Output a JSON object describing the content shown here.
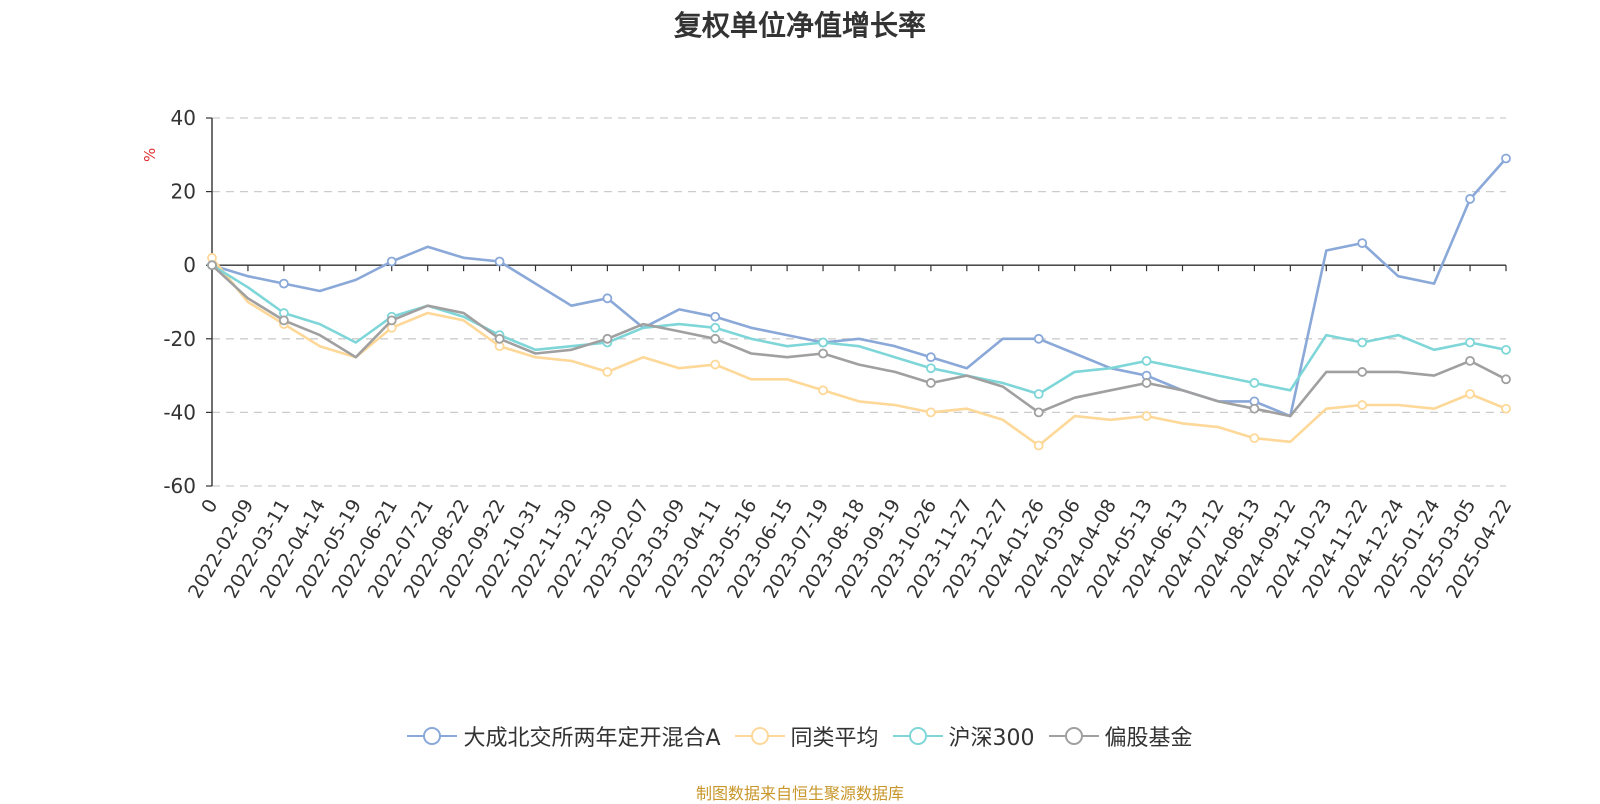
{
  "chart_data": {
    "type": "line",
    "title": "复权单位净值增长率",
    "ylabel": "%",
    "xlabel": "",
    "ylim": [
      -60,
      40
    ],
    "yticks": [
      40,
      20,
      0,
      -20,
      -40,
      -60
    ],
    "grid": true,
    "legend_position": "bottom",
    "x_tick_labels": [
      "0",
      "2022-02-09",
      "2022-03-11",
      "2022-04-14",
      "2022-05-19",
      "2022-06-21",
      "2022-07-21",
      "2022-08-22",
      "2022-09-22",
      "2022-10-31",
      "2022-11-30",
      "2022-12-30",
      "2023-02-07",
      "2023-03-09",
      "2023-04-11",
      "2023-05-16",
      "2023-06-15",
      "2023-07-19",
      "2023-08-18",
      "2023-09-19",
      "2023-10-26",
      "2023-11-27",
      "2023-12-27",
      "2024-01-26",
      "2024-03-06",
      "2024-04-08",
      "2024-05-13",
      "2024-06-13",
      "2024-07-12",
      "2024-08-13",
      "2024-09-12",
      "2024-10-23",
      "2024-11-22",
      "2024-12-24",
      "2025-01-24",
      "2025-03-05",
      "2025-04-22"
    ],
    "series": [
      {
        "name": "大成北交所两年定开混合A",
        "color": "#8aa8d8",
        "values": [
          0,
          -3,
          -5,
          -7,
          -4,
          1,
          5,
          2,
          1,
          -5,
          -11,
          -9,
          -17,
          -12,
          -14,
          -17,
          -19,
          -21,
          -20,
          -22,
          -25,
          -28,
          -20,
          -20,
          -24,
          -28,
          -30,
          -34,
          -37,
          -37,
          -41,
          4,
          6,
          -3,
          -5,
          18,
          29
        ]
      },
      {
        "name": "同类平均",
        "color": "#fdd898",
        "values": [
          2,
          -10,
          -16,
          -22,
          -25,
          -17,
          -13,
          -15,
          -22,
          -25,
          -26,
          -29,
          -25,
          -28,
          -27,
          -31,
          -31,
          -34,
          -37,
          -38,
          -40,
          -39,
          -42,
          -49,
          -41,
          -42,
          -41,
          -43,
          -44,
          -47,
          -48,
          -39,
          -38,
          -38,
          -39,
          -35,
          -39
        ]
      },
      {
        "name": "沪深300",
        "color": "#7fd6d8",
        "values": [
          0,
          -6,
          -13,
          -16,
          -21,
          -14,
          -11,
          -14,
          -19,
          -23,
          -22,
          -21,
          -17,
          -16,
          -17,
          -20,
          -22,
          -21,
          -22,
          -25,
          -28,
          -30,
          -32,
          -35,
          -29,
          -28,
          -26,
          -28,
          -30,
          -32,
          -34,
          -19,
          -21,
          -19,
          -23,
          -21,
          -23
        ]
      },
      {
        "name": "偏股基金",
        "color": "#a0a0a0",
        "values": [
          0,
          -9,
          -15,
          -19,
          -25,
          -15,
          -11,
          -13,
          -20,
          -24,
          -23,
          -20,
          -16,
          -18,
          -20,
          -24,
          -25,
          -24,
          -27,
          -29,
          -32,
          -30,
          -33,
          -40,
          -36,
          -34,
          -32,
          -34,
          -37,
          -39,
          -41,
          -29,
          -29,
          -29,
          -30,
          -26,
          -31
        ]
      }
    ]
  },
  "source_note": "制图数据来自恒生聚源数据库"
}
